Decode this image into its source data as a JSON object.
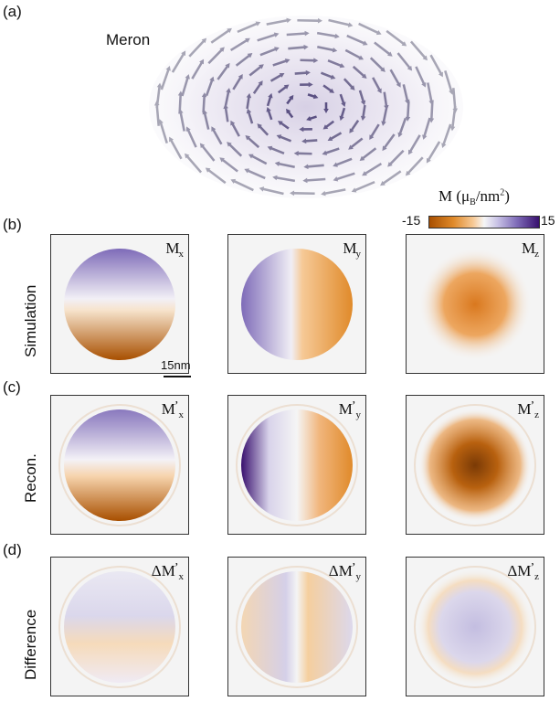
{
  "panel_labels": [
    "(a)",
    "(b)",
    "(c)",
    "(d)"
  ],
  "meron_label": "Meron",
  "row_labels": [
    "Simulation",
    "Recon.",
    "Difference"
  ],
  "colorbar": {
    "title_base": "M (μ",
    "title_sub": "B",
    "title_unit": "/nm",
    "title_exp": "2",
    "title_close": ")",
    "min": "-15",
    "max": "15"
  },
  "scale_bar": "15nm",
  "panels": [
    {
      "base": "M",
      "prime": "",
      "sub": "x"
    },
    {
      "base": "M",
      "prime": "",
      "sub": "y"
    },
    {
      "base": "M",
      "prime": "",
      "sub": "z"
    },
    {
      "base": "M",
      "prime": "’",
      "sub": "x"
    },
    {
      "base": "M",
      "prime": "’",
      "sub": "y"
    },
    {
      "base": "M",
      "prime": "’",
      "sub": "z"
    },
    {
      "base": "ΔM",
      "prime": "’",
      "sub": "x"
    },
    {
      "base": "ΔM",
      "prime": "’",
      "sub": "y"
    },
    {
      "base": "ΔM",
      "prime": "’",
      "sub": "z"
    }
  ],
  "colors": {
    "orange_dark": "#a84f00",
    "orange": "#e08a2a",
    "purple": "#7e6bb8",
    "purple_dark": "#38106e",
    "panel_bg": "#f4f4f4"
  }
}
